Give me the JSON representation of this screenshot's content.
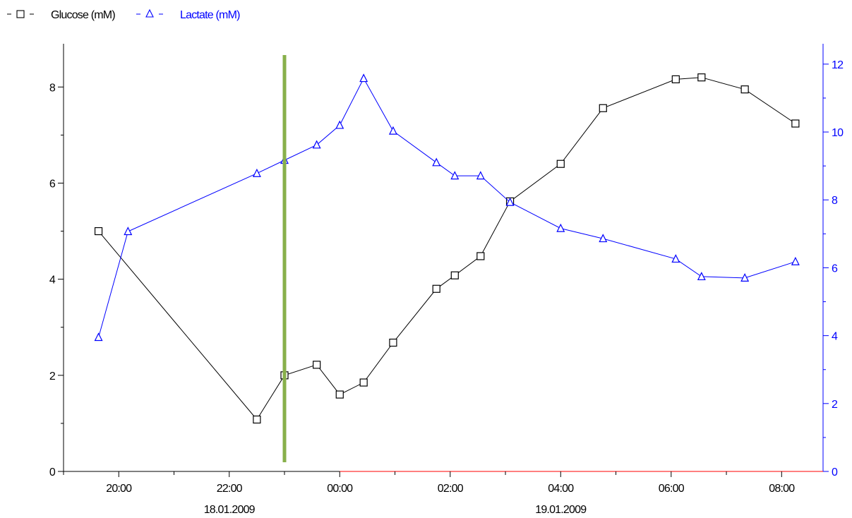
{
  "chart_data": {
    "type": "line",
    "x_axis": {
      "type": "time",
      "range": [
        "18.01.2009 19:00",
        "19.01.2009 08:45"
      ],
      "major_ticks": [
        "20:00",
        "22:00",
        "00:00",
        "02:00",
        "04:00",
        "06:00",
        "08:00"
      ],
      "date_labels": [
        {
          "text": "18.01.2009",
          "under_tick": "22:00"
        },
        {
          "text": "19.01.2009",
          "under_tick": "04:00"
        }
      ]
    },
    "y_axis_left": {
      "label": "",
      "range": [
        0,
        8.9
      ],
      "ticks": [
        "0",
        "2",
        "4",
        "6",
        "8"
      ]
    },
    "y_axis_right": {
      "label": "",
      "range": [
        0,
        12.6
      ],
      "ticks": [
        "0",
        "2",
        "4",
        "6",
        "8",
        "10",
        "12"
      ]
    },
    "series": [
      {
        "name": "Glucose (mM)",
        "axis": "left",
        "marker": "square",
        "color": "#000000",
        "x": [
          "18.01.2009 19:38",
          "18.01.2009 22:30",
          "18.01.2009 23:00",
          "18.01.2009 23:35",
          "19.01.2009 00:00",
          "19.01.2009 00:26",
          "19.01.2009 00:58",
          "19.01.2009 01:45",
          "19.01.2009 02:05",
          "19.01.2009 02:33",
          "19.01.2009 03:05",
          "19.01.2009 04:00",
          "19.01.2009 04:46",
          "19.01.2009 06:05",
          "19.01.2009 06:33",
          "19.01.2009 07:20",
          "19.01.2009 08:15"
        ],
        "y": [
          5.0,
          1.08,
          2.0,
          2.22,
          1.6,
          1.85,
          2.68,
          3.8,
          4.08,
          4.48,
          5.62,
          6.4,
          7.56,
          8.16,
          8.2,
          7.95,
          7.24
        ]
      },
      {
        "name": "Lactate (mM)",
        "axis": "right",
        "marker": "triangle",
        "color": "#0000ff",
        "x": [
          "18.01.2009 19:38",
          "18.01.2009 20:10",
          "18.01.2009 22:30",
          "18.01.2009 23:00",
          "18.01.2009 23:35",
          "19.01.2009 00:00",
          "19.01.2009 00:26",
          "19.01.2009 00:58",
          "19.01.2009 01:45",
          "19.01.2009 02:05",
          "19.01.2009 02:33",
          "19.01.2009 03:05",
          "19.01.2009 04:00",
          "19.01.2009 04:46",
          "19.01.2009 06:05",
          "19.01.2009 06:33",
          "19.01.2009 07:20",
          "19.01.2009 08:15"
        ],
        "y": [
          3.95,
          7.07,
          8.78,
          9.17,
          9.62,
          10.2,
          11.58,
          10.03,
          9.1,
          8.71,
          8.71,
          7.93,
          7.16,
          6.86,
          6.26,
          5.74,
          5.7,
          6.18
        ]
      }
    ],
    "marker_line": {
      "x": "18.01.2009 23:00",
      "color": "#88b04b"
    },
    "legend": {
      "placement": "top-left"
    },
    "grid": false,
    "colors": {
      "left_axis": "#000000",
      "right_axis": "#0000ff",
      "x_axis_right_segment": "#ff0000"
    }
  }
}
